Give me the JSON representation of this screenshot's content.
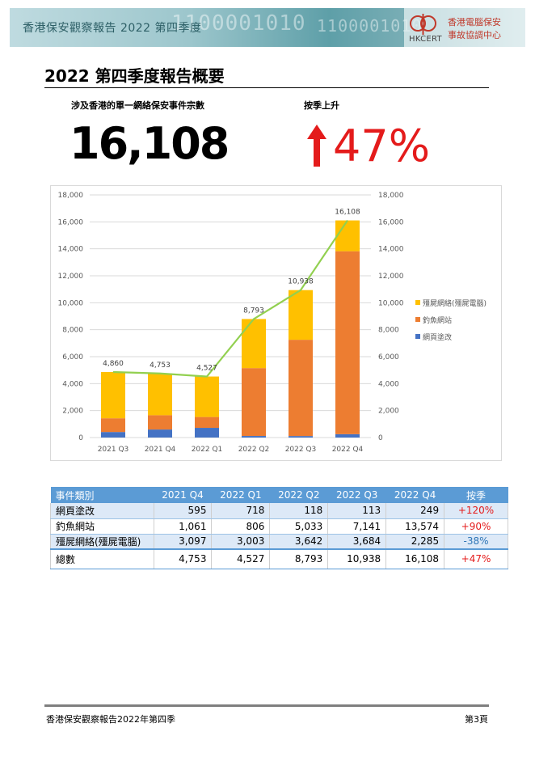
{
  "header": {
    "banner_title": "香港保安觀察報告 2022 第四季度",
    "binary_text": "1100001010",
    "logo_wordmark": "HKCERT",
    "logo_line1": "香港電腦保安",
    "logo_line2": "事故協調中心",
    "colors": {
      "banner": "#9cc6cc",
      "logo_text": "#c0392b"
    }
  },
  "page": {
    "title": "2022 第四季度報告概要",
    "incident_label": "涉及香港的單一網絡保安事件宗數",
    "incident_count": "16,108",
    "qoq_label": "按季上升",
    "qoq_change": "47%",
    "accent_color": "#e41b1b"
  },
  "chart_data": {
    "type": "bar",
    "stacked": true,
    "categories": [
      "2021 Q3",
      "2021 Q4",
      "2022 Q1",
      "2022 Q2",
      "2022 Q3",
      "2022 Q4"
    ],
    "series": [
      {
        "name": "網頁塗改",
        "color": "#4472c4",
        "values": [
          410,
          595,
          718,
          118,
          113,
          249
        ]
      },
      {
        "name": "釣魚網站",
        "color": "#ed7d31",
        "values": [
          1020,
          1061,
          806,
          5033,
          7141,
          13574
        ]
      },
      {
        "name": "殭屍網絡(殭屍電腦)",
        "color": "#ffc000",
        "values": [
          3430,
          3097,
          3003,
          3642,
          3684,
          2285
        ]
      }
    ],
    "total_line": {
      "color": "#92d050",
      "values": [
        4860,
        4753,
        4527,
        8793,
        10938,
        16108
      ]
    },
    "data_labels": [
      "4,860",
      "4,753",
      "4,527",
      "8,793",
      "10,938",
      "16,108"
    ],
    "ylim": [
      0,
      18000
    ],
    "yticks": [
      "0",
      "2,000",
      "4,000",
      "6,000",
      "8,000",
      "10,000",
      "12,000",
      "14,000",
      "16,000",
      "18,000"
    ],
    "secondary_axis": true,
    "grid": true,
    "legend": "right"
  },
  "table": {
    "headers": [
      "事件類別",
      "2021 Q4",
      "2022 Q1",
      "2022 Q2",
      "2022 Q3",
      "2022 Q4",
      "按季"
    ],
    "rows": [
      {
        "cat": "網頁塗改",
        "vals": [
          "595",
          "718",
          "118",
          "113",
          "249"
        ],
        "chg": "+120%",
        "chg_color": "red"
      },
      {
        "cat": "釣魚網站",
        "vals": [
          "1,061",
          "806",
          "5,033",
          "7,141",
          "13,574"
        ],
        "chg": "+90%",
        "chg_color": "red"
      },
      {
        "cat": "殭屍網絡(殭屍電腦)",
        "vals": [
          "3,097",
          "3,003",
          "3,642",
          "3,684",
          "2,285"
        ],
        "chg": "-38%",
        "chg_color": "blue"
      }
    ],
    "total": {
      "cat": "總數",
      "vals": [
        "4,753",
        "4,527",
        "8,793",
        "10,938",
        "16,108"
      ],
      "chg": "+47%",
      "chg_color": "red"
    }
  },
  "footer": {
    "left": "香港保安觀察報告2022年第四季",
    "right": "第3頁"
  }
}
